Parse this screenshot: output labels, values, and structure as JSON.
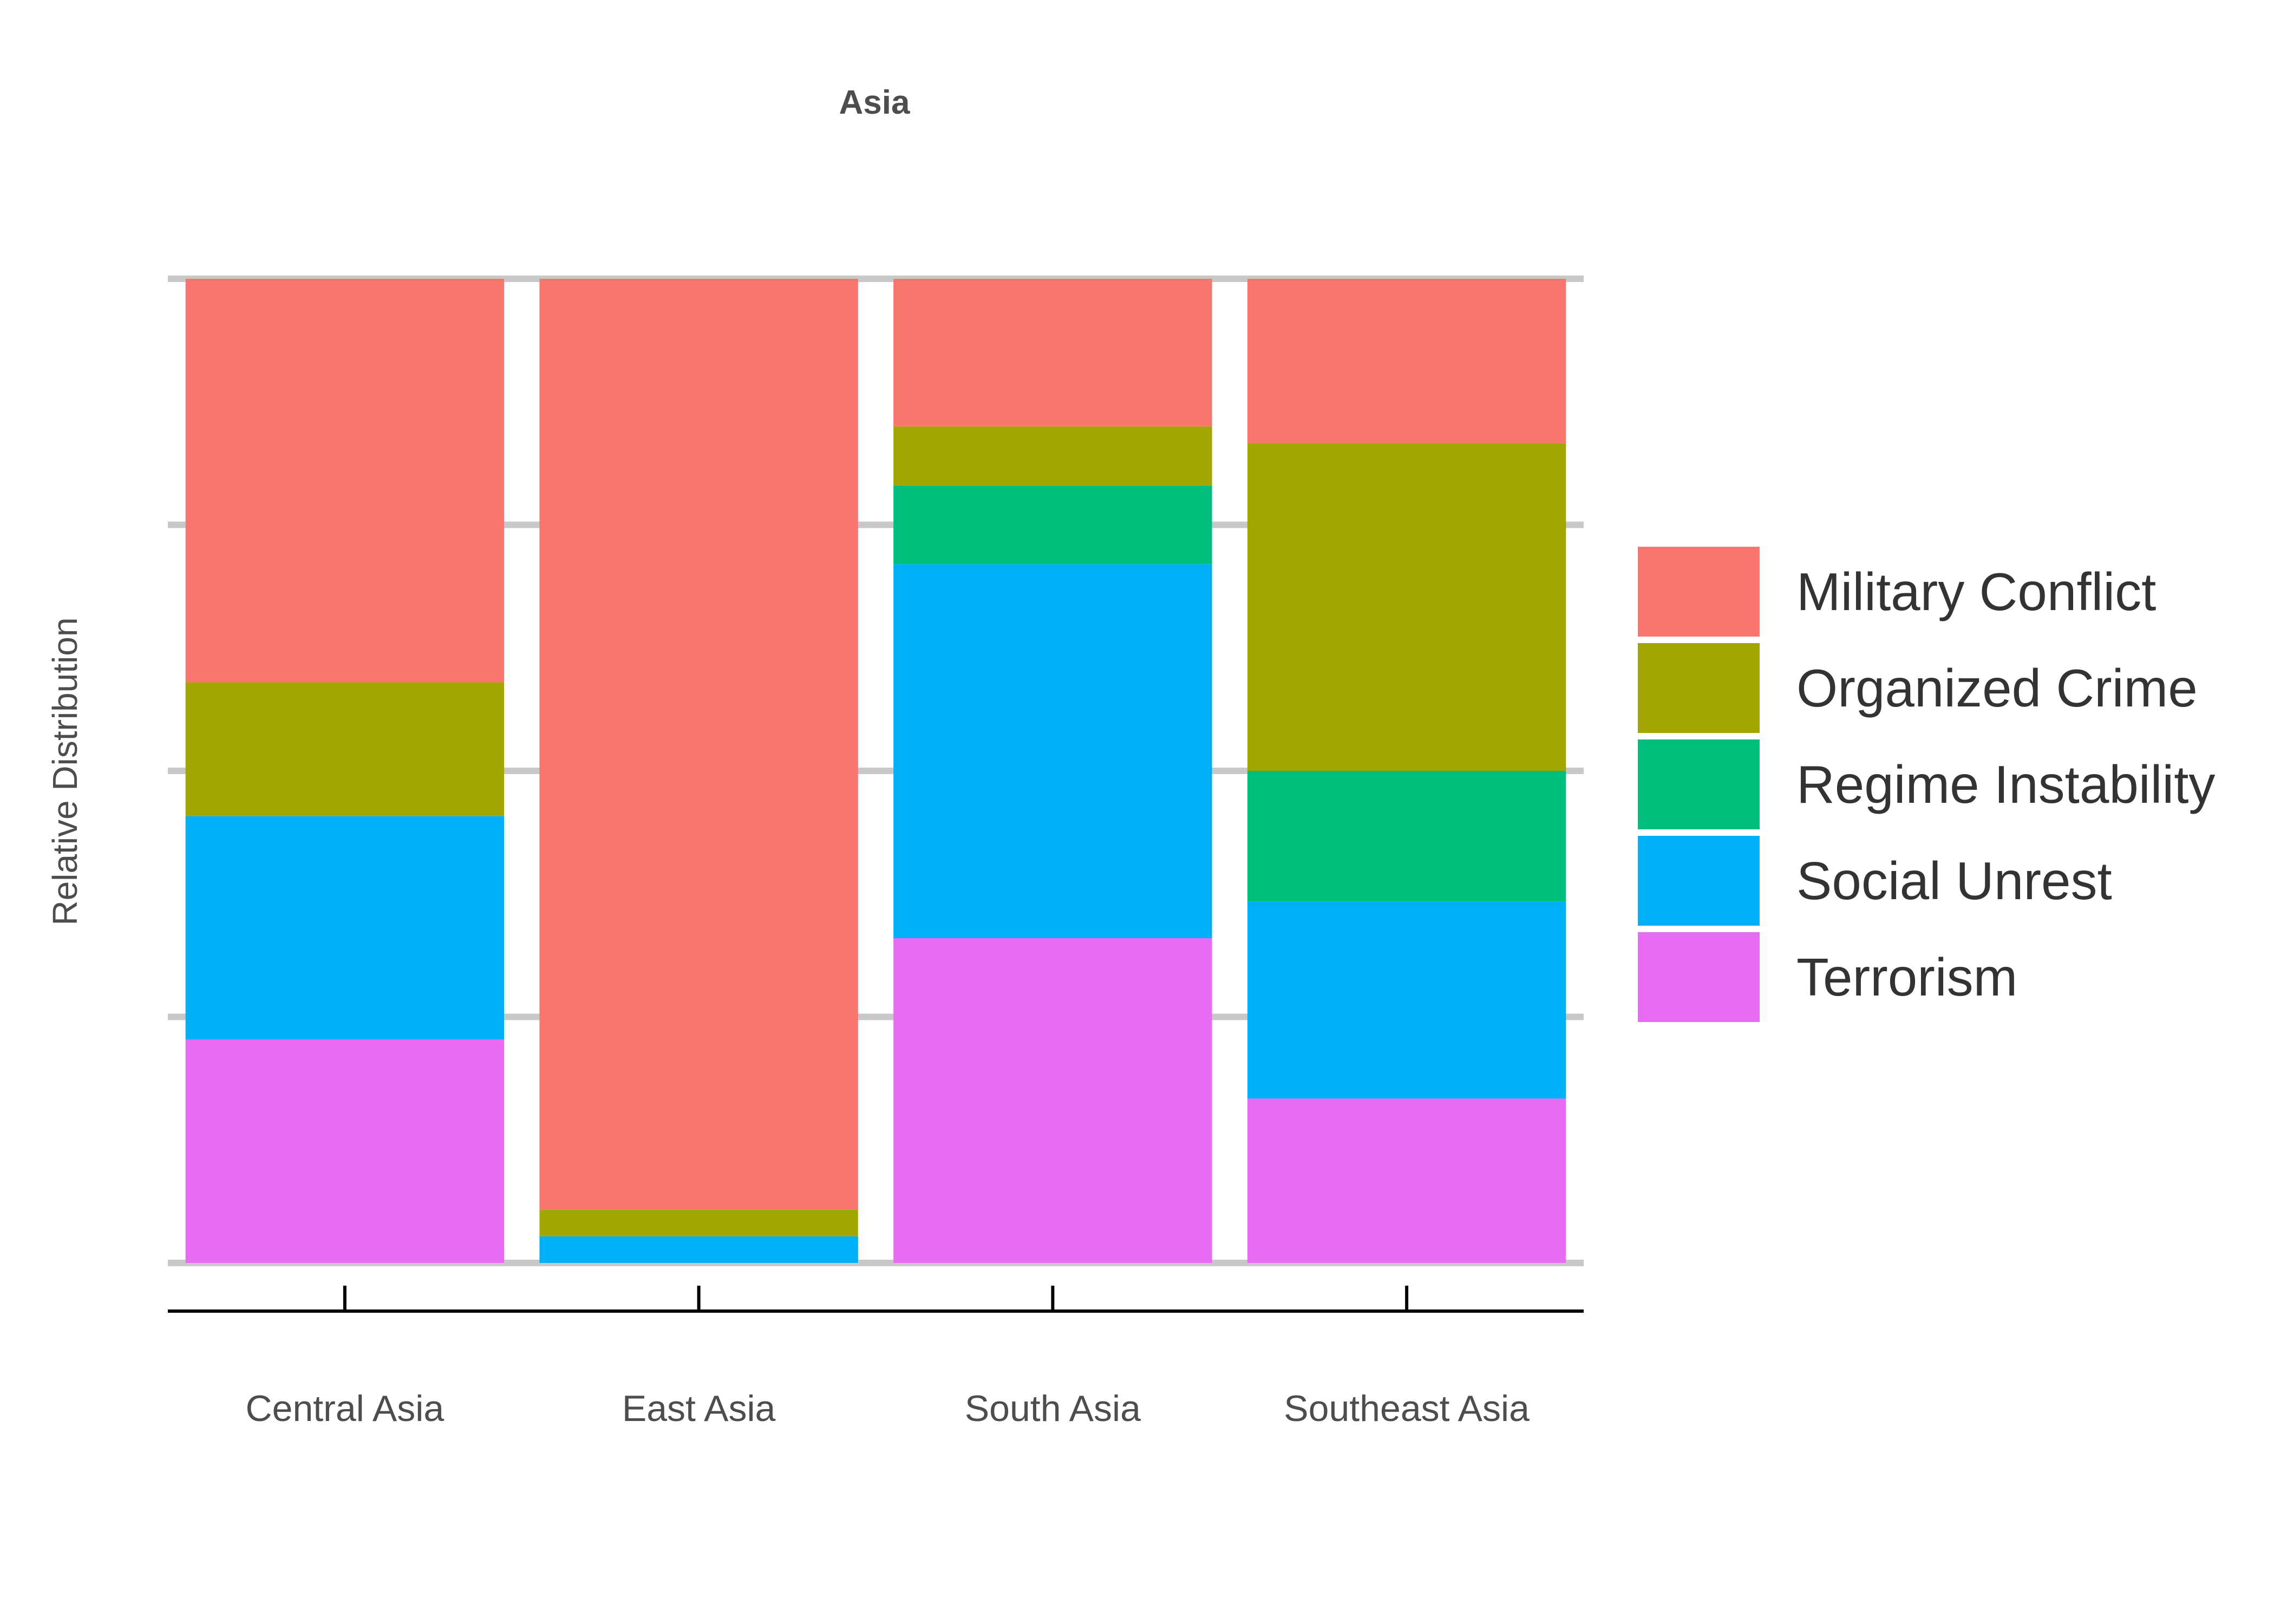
{
  "chart_data": {
    "type": "bar",
    "stacked": true,
    "normalized": true,
    "title": "Asia",
    "xlabel": "",
    "ylabel": "Relative Distribution",
    "ylim": [
      0,
      1
    ],
    "grid": true,
    "legend_position": "right",
    "categories": [
      "Central Asia",
      "East Asia",
      "South Asia",
      "Southeast Asia"
    ],
    "series": [
      {
        "name": "Terrorism",
        "color": "#E76BF3",
        "values": [
          0.227,
          0.0,
          0.33,
          0.167
        ]
      },
      {
        "name": "Social Unrest",
        "color": "#00B0F6",
        "values": [
          0.227,
          0.027,
          0.38,
          0.2
        ]
      },
      {
        "name": "Regime Instability",
        "color": "#00BF7D",
        "values": [
          0.0,
          0.0,
          0.08,
          0.133
        ]
      },
      {
        "name": "Organized Crime",
        "color": "#A3A500",
        "values": [
          0.136,
          0.027,
          0.06,
          0.333
        ]
      },
      {
        "name": "Military Conflict",
        "color": "#F8766D",
        "values": [
          0.41,
          0.946,
          0.15,
          0.167
        ]
      }
    ],
    "legend_order": [
      "Military Conflict",
      "Organized Crime",
      "Regime Instability",
      "Social Unrest",
      "Terrorism"
    ]
  }
}
